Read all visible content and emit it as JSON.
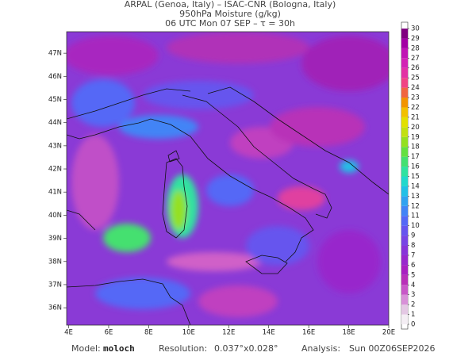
{
  "header": {
    "line1": "ARPAL (Genoa, Italy)  –  ISAC-CNR (Bologna, Italy)",
    "line2": "950hPa Moisture (g/kg)",
    "line3": "06 UTC Mon 07 SEP  –  τ = 30h"
  },
  "map": {
    "lonlim": [
      3.9,
      20
    ],
    "latlim": [
      35.25,
      47.93
    ],
    "lon_ticks": [
      {
        "value": 4,
        "label": "4E"
      },
      {
        "value": 6,
        "label": "6E"
      },
      {
        "value": 8,
        "label": "8E"
      },
      {
        "value": 10,
        "label": "10E"
      },
      {
        "value": 12,
        "label": "12E"
      },
      {
        "value": 14,
        "label": "14E"
      },
      {
        "value": 16,
        "label": "16E"
      },
      {
        "value": 18,
        "label": "18E"
      },
      {
        "value": 20,
        "label": "20E"
      }
    ],
    "lat_ticks": [
      {
        "value": 36,
        "label": "36N"
      },
      {
        "value": 37,
        "label": "37N"
      },
      {
        "value": 38,
        "label": "38N"
      },
      {
        "value": 39,
        "label": "39N"
      },
      {
        "value": 40,
        "label": "40N"
      },
      {
        "value": 41,
        "label": "41N"
      },
      {
        "value": 42,
        "label": "42N"
      },
      {
        "value": 43,
        "label": "43N"
      },
      {
        "value": 44,
        "label": "44N"
      },
      {
        "value": 45,
        "label": "45N"
      },
      {
        "value": 46,
        "label": "46N"
      },
      {
        "value": 47,
        "label": "47N"
      }
    ]
  },
  "colorbar": {
    "ticks": [
      0,
      1,
      2,
      3,
      4,
      5,
      6,
      7,
      8,
      9,
      10,
      11,
      12,
      13,
      14,
      15,
      16,
      17,
      18,
      19,
      20,
      21,
      22,
      23,
      24,
      25,
      26,
      27,
      28,
      29,
      30
    ],
    "colors": [
      "#f4eef4",
      "#e4c8e4",
      "#d890d8",
      "#c858c8",
      "#b830b8",
      "#a820c0",
      "#9828cc",
      "#8834d8",
      "#7844e4",
      "#6654ee",
      "#5468f6",
      "#4284f6",
      "#30a2f0",
      "#22c0e6",
      "#22d8cc",
      "#30e2a0",
      "#44e070",
      "#64e040",
      "#94e020",
      "#c2e010",
      "#e2e000",
      "#f2c000",
      "#f29400",
      "#f06640",
      "#f04484",
      "#e232a4",
      "#d222b4",
      "#c014b4",
      "#a200a4",
      "#800080"
    ]
  },
  "footer": {
    "model_label": "Model:",
    "model": "moloch",
    "resolution_label": "Resolution:",
    "resolution": "0.037°x0.028°",
    "analysis_label": "Analysis:",
    "analysis": "Sun  00Z06SEP2026"
  }
}
